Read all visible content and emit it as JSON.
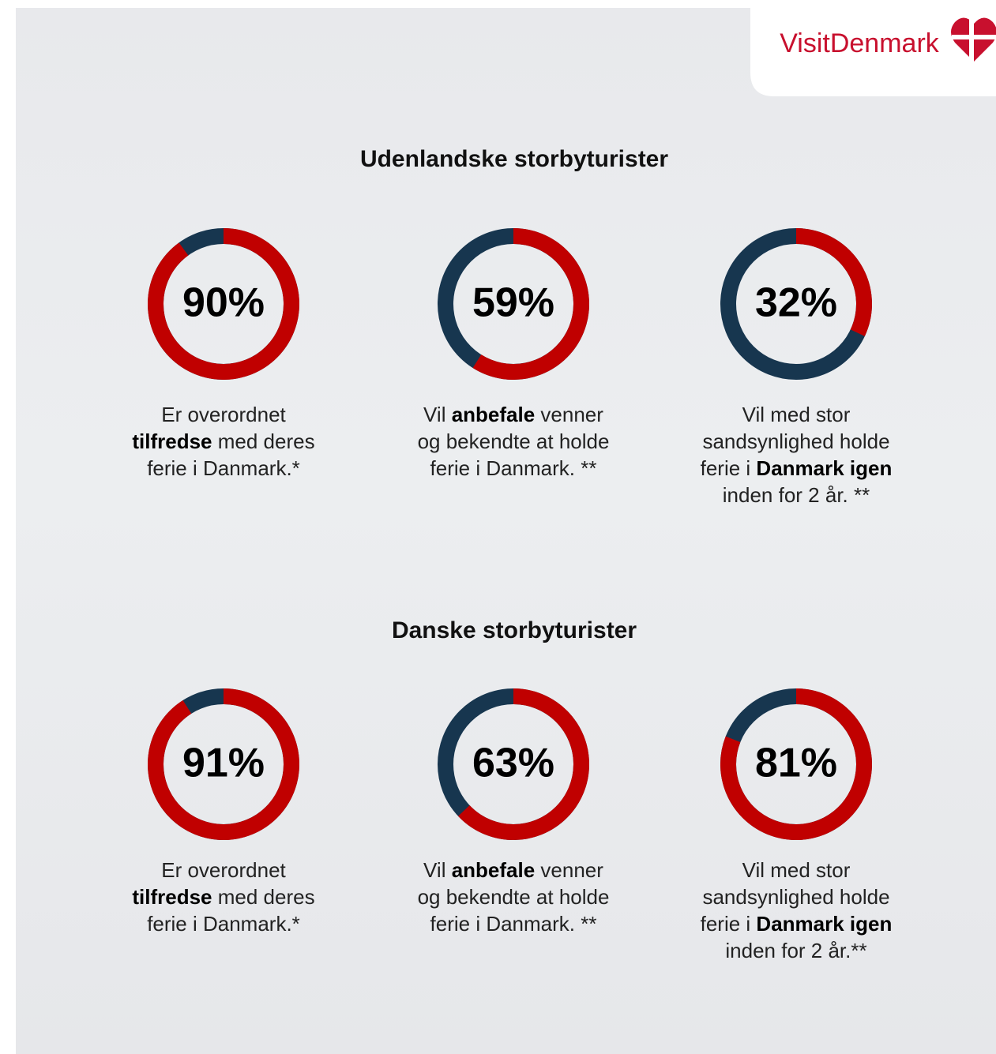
{
  "logo": "VisitDenmark",
  "sections": [
    {
      "title": "Udenlandske storbyturister",
      "chart_data": [
        {
          "type": "donut",
          "values": [
            90
          ],
          "value_labels": [
            "90%"
          ],
          "ylim": [
            0,
            100
          ],
          "color": "#c00000",
          "rest_color": "#17364f",
          "caption": [
            {
              "text": "Er overordnet ",
              "bold": false
            },
            {
              "text": "tilfredse",
              "bold": true
            },
            {
              "text": " med deres ferie i Danmark.*",
              "bold": false
            }
          ]
        },
        {
          "type": "donut",
          "values": [
            59
          ],
          "value_labels": [
            "59%"
          ],
          "ylim": [
            0,
            100
          ],
          "color": "#c00000",
          "rest_color": "#17364f",
          "caption": [
            {
              "text": "Vil ",
              "bold": false
            },
            {
              "text": "anbefale",
              "bold": true
            },
            {
              "text": " venner og bekendte at holde ferie i Danmark. **",
              "bold": false
            }
          ]
        },
        {
          "type": "donut",
          "values": [
            32
          ],
          "value_labels": [
            "32%"
          ],
          "ylim": [
            0,
            100
          ],
          "color": "#c00000",
          "rest_color": "#17364f",
          "caption": [
            {
              "text": "Vil med stor sandsynlighed holde ferie i ",
              "bold": false
            },
            {
              "text": "Danmark igen",
              "bold": true
            },
            {
              "text": " inden for 2 år. **",
              "bold": false
            }
          ]
        }
      ]
    },
    {
      "title": "Danske storbyturister",
      "chart_data": [
        {
          "type": "donut",
          "values": [
            91
          ],
          "value_labels": [
            "91%"
          ],
          "ylim": [
            0,
            100
          ],
          "color": "#c00000",
          "rest_color": "#17364f",
          "caption": [
            {
              "text": "Er overordnet ",
              "bold": false
            },
            {
              "text": "tilfredse",
              "bold": true
            },
            {
              "text": " med deres ferie i Danmark.*",
              "bold": false
            }
          ]
        },
        {
          "type": "donut",
          "values": [
            63
          ],
          "value_labels": [
            "63%"
          ],
          "ylim": [
            0,
            100
          ],
          "color": "#c00000",
          "rest_color": "#17364f",
          "caption": [
            {
              "text": "Vil ",
              "bold": false
            },
            {
              "text": "anbefale",
              "bold": true
            },
            {
              "text": " venner og bekendte at holde ferie i Danmark. **",
              "bold": false
            }
          ]
        },
        {
          "type": "donut",
          "values": [
            81
          ],
          "value_labels": [
            "81%"
          ],
          "ylim": [
            0,
            100
          ],
          "color": "#c00000",
          "rest_color": "#17364f",
          "caption": [
            {
              "text": "Vil med stor sandsynlighed holde ferie i ",
              "bold": false
            },
            {
              "text": "Danmark igen",
              "bold": true
            },
            {
              "text": " inden for 2 år.**",
              "bold": false
            }
          ]
        }
      ]
    }
  ]
}
